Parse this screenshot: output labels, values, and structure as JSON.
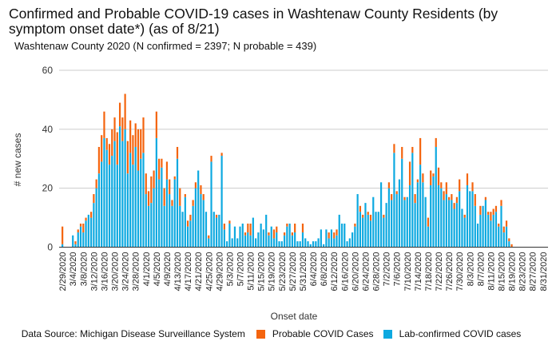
{
  "chart_data": {
    "type": "bar",
    "stacked": true,
    "title": "Confirmed and Probable COVID-19 cases in Washtenaw County Residents (by symptom onset date*) (as of 8/21)",
    "subtitle": "Washtenaw County 2020 (N confirmed = 2397; N probable = 439)",
    "xlabel": "Onset date",
    "ylabel": "# new cases",
    "ylim": [
      0,
      60
    ],
    "yticks": [
      0,
      20,
      40,
      60
    ],
    "grid": true,
    "legend_position": "bottom",
    "start_date": "2/29/2020",
    "xtick_labels": [
      "2/29/2020",
      "3/4/2020",
      "3/8/2020",
      "3/12/2020",
      "3/16/2020",
      "3/20/2020",
      "3/24/2020",
      "3/28/2020",
      "4/1/2020",
      "4/5/2020",
      "4/9/2020",
      "4/13/2020",
      "4/17/2020",
      "4/21/2020",
      "4/25/2020",
      "4/29/2020",
      "5/3/2020",
      "5/7/2020",
      "5/11/2020",
      "5/15/2020",
      "5/19/2020",
      "5/23/2020",
      "5/27/2020",
      "5/31/2020",
      "6/4/2020",
      "6/8/2020",
      "6/12/2020",
      "6/16/2020",
      "6/20/2020",
      "6/24/2020",
      "6/28/2020",
      "7/2/2020",
      "7/6/2020",
      "7/10/2020",
      "7/14/2020",
      "7/18/2020",
      "7/22/2020",
      "7/26/2020",
      "7/30/2020",
      "8/3/2020",
      "8/7/2020",
      "8/11/2020",
      "8/15/2020",
      "8/19/2020",
      "8/23/2020",
      "8/27/2020",
      "8/31/2020"
    ],
    "xtick_every_days": 4,
    "series": [
      {
        "name": "Lab-confirmed COVID cases",
        "color": "#0da9e0",
        "values": [
          1,
          0,
          0,
          0,
          4,
          1,
          5,
          7,
          5,
          9,
          11,
          10,
          15,
          20,
          25,
          29,
          37,
          33,
          28,
          31,
          36,
          28,
          41,
          36,
          40,
          25,
          32,
          28,
          34,
          26,
          30,
          32,
          18,
          14,
          15,
          20,
          37,
          23,
          27,
          14,
          23,
          18,
          14,
          23,
          30,
          14,
          12,
          17,
          7,
          9,
          14,
          20,
          26,
          18,
          16,
          12,
          3,
          29,
          12,
          10,
          11,
          31,
          6,
          2,
          8,
          3,
          7,
          3,
          7,
          8,
          4,
          5,
          4,
          10,
          3,
          5,
          8,
          6,
          11,
          4,
          7,
          3,
          5,
          2,
          2,
          4,
          7,
          8,
          4,
          5,
          2,
          2,
          5,
          3,
          2,
          1,
          2,
          2,
          3,
          6,
          1,
          6,
          3,
          6,
          3,
          4,
          11,
          8,
          8,
          2,
          3,
          5,
          7,
          18,
          12,
          10,
          15,
          11,
          9,
          17,
          12,
          12,
          22,
          10,
          15,
          20,
          16,
          32,
          18,
          23,
          30,
          16,
          17,
          21,
          32,
          15,
          22,
          28,
          22,
          17,
          7,
          21,
          24,
          34,
          21,
          20,
          16,
          18,
          16,
          16,
          13,
          15,
          19,
          13,
          10,
          21,
          19,
          19,
          14,
          8,
          11,
          14,
          16,
          11,
          9,
          11,
          12,
          7,
          14,
          5,
          7,
          2,
          0,
          0,
          0,
          0,
          0,
          0,
          0,
          0,
          0,
          0,
          0,
          0
        ]
      },
      {
        "name": "Probable COVID Cases",
        "color": "#f4640e",
        "values": [
          6,
          0,
          0,
          0,
          0,
          1,
          1,
          1,
          3,
          1,
          0,
          2,
          3,
          3,
          9,
          9,
          9,
          4,
          7,
          9,
          8,
          11,
          8,
          8,
          12,
          11,
          11,
          10,
          8,
          14,
          10,
          12,
          7,
          5,
          9,
          6,
          9,
          7,
          3,
          6,
          6,
          5,
          2,
          1,
          4,
          6,
          0,
          1,
          2,
          2,
          2,
          2,
          0,
          3,
          2,
          0,
          1,
          2,
          0,
          1,
          0,
          1,
          2,
          0,
          1,
          0,
          0,
          0,
          0,
          0,
          1,
          3,
          4,
          0,
          0,
          0,
          0,
          0,
          0,
          1,
          0,
          3,
          2,
          0,
          0,
          1,
          1,
          0,
          1,
          3,
          0,
          0,
          3,
          0,
          0,
          0,
          0,
          0,
          0,
          0,
          0,
          0,
          2,
          0,
          2,
          2,
          0,
          0,
          0,
          0,
          0,
          0,
          1,
          0,
          2,
          1,
          0,
          1,
          2,
          0,
          0,
          0,
          0,
          1,
          0,
          2,
          2,
          3,
          1,
          0,
          4,
          1,
          0,
          8,
          2,
          3,
          1,
          9,
          3,
          0,
          3,
          5,
          1,
          3,
          6,
          2,
          3,
          4,
          1,
          2,
          2,
          2,
          4,
          0,
          1,
          4,
          0,
          3,
          4,
          0,
          3,
          0,
          1,
          1,
          3,
          2,
          2,
          1,
          2,
          2,
          2,
          1,
          1,
          0,
          0,
          0,
          0,
          0,
          0,
          0,
          0,
          0,
          0,
          0,
          0
        ]
      }
    ]
  },
  "legend": {
    "source": "Data Source: Michigan Disease Surveillance System",
    "items": [
      {
        "label": "Probable COVID Cases",
        "color": "#f4640e"
      },
      {
        "label": "Lab-confirmed COVID cases",
        "color": "#0da9e0"
      }
    ]
  }
}
